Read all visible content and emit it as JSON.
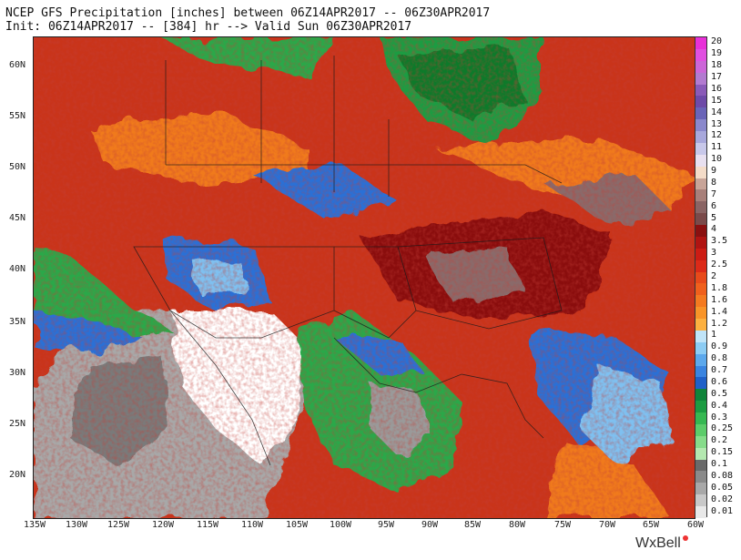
{
  "header": {
    "title_line1": "NCEP GFS Precipitation [inches] between 06Z14APR2017 -- 06Z30APR2017",
    "title_line2": "Init: 06Z14APR2017 -- [384] hr --> Valid Sun 06Z30APR2017"
  },
  "map": {
    "lat_labels": [
      "60N",
      "55N",
      "50N",
      "45N",
      "40N",
      "35N",
      "30N",
      "25N",
      "20N"
    ],
    "lon_labels": [
      "135W",
      "130W",
      "125W",
      "120W",
      "115W",
      "110W",
      "105W",
      "100W",
      "95W",
      "90W",
      "85W",
      "80W",
      "75W",
      "70W",
      "65W",
      "60W"
    ],
    "colors": {
      "heavy_red": "#c41c14",
      "dark_red": "#8a0f0a",
      "orange": "#f07a1e",
      "green": "#2ca84a",
      "dark_green": "#0d7a2c",
      "blue": "#2b6fd6",
      "light_blue": "#7fc0f0",
      "gray": "#9a9a9a",
      "light_gray": "#cfcfcf",
      "dry_white": "#ffffff",
      "mauve": "#8a6a6a"
    }
  },
  "legend": {
    "labels": [
      "20",
      "19",
      "18",
      "17",
      "16",
      "15",
      "14",
      "13",
      "12",
      "11",
      "10",
      "9",
      "8",
      "7",
      "6",
      "5",
      "4",
      "3.5",
      "3",
      "2.5",
      "2",
      "1.8",
      "1.6",
      "1.4",
      "1.2",
      "1",
      "0.9",
      "0.8",
      "0.7",
      "0.6",
      "0.5",
      "0.4",
      "0.3",
      "0.25",
      "0.2",
      "0.15",
      "0.1",
      "0.08",
      "0.05",
      "0.02",
      "0.01"
    ],
    "colors": [
      "#e830d8",
      "#e050e0",
      "#cc66d8",
      "#b27ad0",
      "#8a5ab8",
      "#6e4aa8",
      "#6a64b8",
      "#8a88cc",
      "#a8a8dc",
      "#c8c8ea",
      "#e8e0f0",
      "#f4dcc8",
      "#c8a498",
      "#a8807a",
      "#8a6464",
      "#7a4a4a",
      "#8a1010",
      "#b01412",
      "#cc1c14",
      "#dc2a18",
      "#e84a1a",
      "#f0601c",
      "#f47a20",
      "#f89428",
      "#fcb040",
      "#c0e4f8",
      "#8cccf4",
      "#5ca8ec",
      "#3a84e0",
      "#2060c8",
      "#10843a",
      "#1c9c42",
      "#36b852",
      "#5ccc6a",
      "#86dc8a",
      "#b4e8b0",
      "#6a6a6a",
      "#8a8a8a",
      "#a8a8a8",
      "#c8c8c8",
      "#e8e8e8"
    ]
  },
  "brand": {
    "name": "WxBell"
  }
}
